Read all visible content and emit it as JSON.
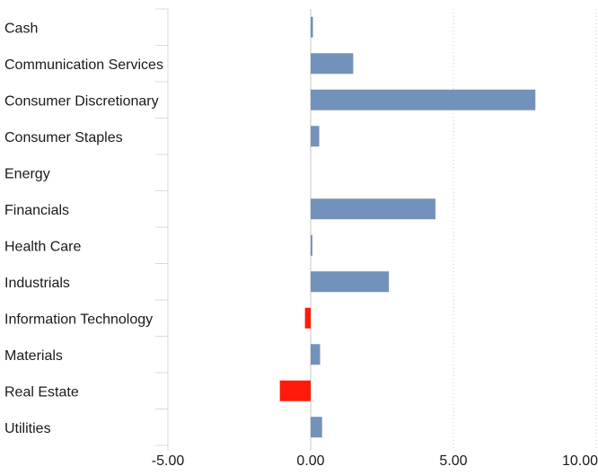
{
  "chart_data": {
    "type": "bar",
    "orientation": "horizontal",
    "categories": [
      "Cash",
      "Communication Services",
      "Consumer Discretionary",
      "Consumer Staples",
      "Energy",
      "Financials",
      "Health Care",
      "Industrials",
      "Information Technology",
      "Materials",
      "Real Estate",
      "Utilities"
    ],
    "values": [
      0.08,
      1.49,
      7.87,
      0.3,
      0.0,
      4.37,
      0.06,
      2.74,
      -0.2,
      0.33,
      -1.08,
      0.4
    ],
    "xlim": [
      -5,
      10
    ],
    "xticks": [
      -5,
      0,
      5,
      10
    ],
    "xtick_labels": [
      "-5.00",
      "0.00",
      "5.00",
      "10.00"
    ],
    "grid": "vertical dotted",
    "colors": {
      "positive": "#7392bb",
      "negative": "#ff1a0a"
    },
    "title": "",
    "xlabel": "",
    "ylabel": ""
  }
}
